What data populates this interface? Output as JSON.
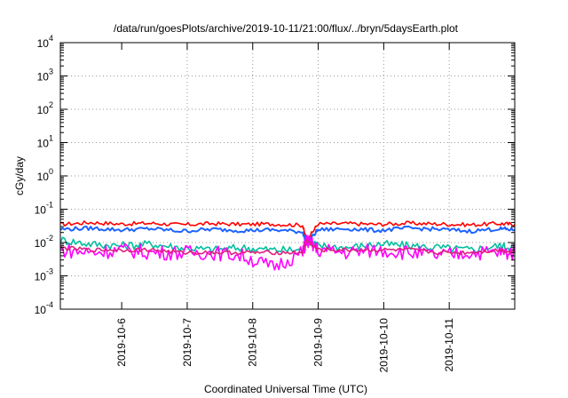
{
  "chart_data": {
    "type": "line",
    "title": "/data/run/goesPlots/archive/2019-10-11/21:00/flux/../bryn/5daysEarth.plot",
    "xlabel": "Coordinated Universal Time (UTC)",
    "ylabel": "cGy/day",
    "yscale": "log",
    "ylim": [
      0.0001,
      10000
    ],
    "y_ticks": [
      {
        "base": "10",
        "exp": "4"
      },
      {
        "base": "10",
        "exp": "3"
      },
      {
        "base": "10",
        "exp": "2"
      },
      {
        "base": "10",
        "exp": "1"
      },
      {
        "base": "10",
        "exp": "0"
      },
      {
        "base": "10",
        "exp": "-1"
      },
      {
        "base": "10",
        "exp": "-2"
      },
      {
        "base": "10",
        "exp": "-3"
      },
      {
        "base": "10",
        "exp": "-4"
      }
    ],
    "x_tick_labels": [
      "2019-10-6",
      "2019-10-7",
      "2019-10-8",
      "2019-10-9",
      "2019-10-10",
      "2019-10-11"
    ],
    "x_range_days": [
      0,
      6.0
    ],
    "grid": true,
    "series": [
      {
        "color": "#ff0000",
        "x": [
          0,
          0.4,
          0.8,
          1.2,
          1.6,
          2.0,
          2.4,
          2.8,
          3.2,
          3.25,
          3.4,
          3.8,
          4.2,
          4.6,
          5.0,
          5.4,
          5.8,
          6.0
        ],
        "y": [
          0.035,
          0.04,
          0.036,
          0.038,
          0.034,
          0.037,
          0.035,
          0.036,
          0.033,
          0.011,
          0.036,
          0.037,
          0.035,
          0.038,
          0.036,
          0.034,
          0.037,
          0.035
        ]
      },
      {
        "color": "#00c0a0",
        "x": [
          0,
          0.4,
          0.8,
          1.2,
          1.6,
          2.0,
          2.4,
          2.8,
          3.2,
          3.25,
          3.4,
          3.8,
          4.2,
          4.6,
          5.0,
          5.4,
          5.8,
          6.0
        ],
        "y": [
          0.012,
          0.009,
          0.008,
          0.009,
          0.007,
          0.006,
          0.007,
          0.006,
          0.006,
          0.012,
          0.008,
          0.007,
          0.009,
          0.008,
          0.007,
          0.006,
          0.008,
          0.007
        ]
      },
      {
        "color": "#1e64ff",
        "x": [
          0,
          0.4,
          0.8,
          1.2,
          1.6,
          2.0,
          2.4,
          2.8,
          3.2,
          3.25,
          3.4,
          3.8,
          4.2,
          4.6,
          5.0,
          5.4,
          5.8,
          6.0
        ],
        "y": [
          0.025,
          0.027,
          0.024,
          0.026,
          0.022,
          0.025,
          0.023,
          0.024,
          0.021,
          0.009,
          0.024,
          0.026,
          0.023,
          0.027,
          0.025,
          0.022,
          0.026,
          0.024
        ]
      },
      {
        "color": "#ff00ff",
        "x": [
          0,
          0.4,
          0.8,
          1.2,
          1.6,
          2.0,
          2.4,
          2.8,
          3.2,
          3.25,
          3.4,
          3.8,
          4.2,
          4.6,
          5.0,
          5.4,
          5.8,
          6.0
        ],
        "y": [
          0.006,
          0.005,
          0.006,
          0.005,
          0.005,
          0.005,
          0.004,
          0.0018,
          0.005,
          0.012,
          0.006,
          0.005,
          0.006,
          0.005,
          0.004,
          0.005,
          0.005,
          0.005
        ]
      },
      {
        "color": "#e02080",
        "x": [
          0,
          0.4,
          0.8,
          1.2,
          1.6,
          2.0,
          2.4,
          2.8,
          3.2,
          3.25,
          3.4,
          3.8,
          4.2,
          4.6,
          5.0,
          5.4,
          5.8,
          6.0
        ],
        "y": [
          0.007,
          0.006,
          0.006,
          0.006,
          0.005,
          0.005,
          0.005,
          0.005,
          0.005,
          0.012,
          0.006,
          0.006,
          0.006,
          0.006,
          0.005,
          0.005,
          0.006,
          0.005
        ]
      }
    ]
  }
}
